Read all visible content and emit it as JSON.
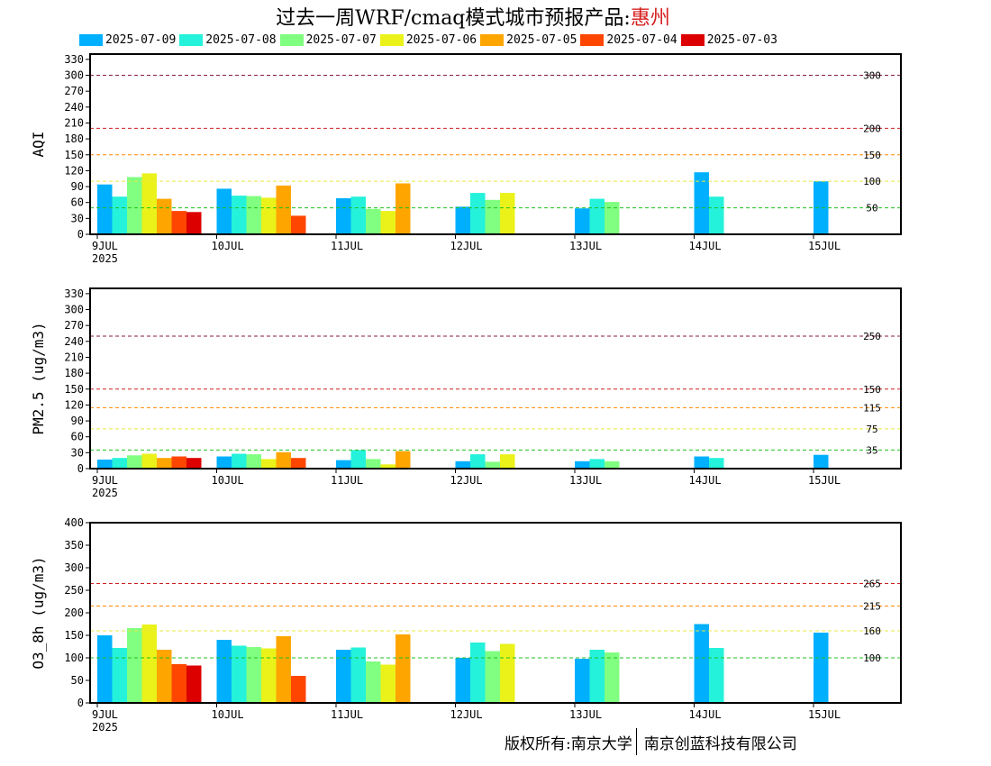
{
  "title": {
    "main": "过去一周WRF/cmaq模式城市预报产品:",
    "city": "惠州"
  },
  "legend": [
    {
      "label": "2025-07-09",
      "color": "#00b0ff"
    },
    {
      "label": "2025-07-08",
      "color": "#24f2da"
    },
    {
      "label": "2025-07-07",
      "color": "#80ff80"
    },
    {
      "label": "2025-07-06",
      "color": "#eaf21a"
    },
    {
      "label": "2025-07-05",
      "color": "#ffa500"
    },
    {
      "label": "2025-07-04",
      "color": "#ff4600"
    },
    {
      "label": "2025-07-03",
      "color": "#dd0000"
    }
  ],
  "x_ticks": [
    "9JUL",
    "10JUL",
    "11JUL",
    "12JUL",
    "13JUL",
    "14JUL",
    "15JUL"
  ],
  "year_label": "2025",
  "chart_data": [
    {
      "type": "bar",
      "ylabel": "AQI",
      "ylim": [
        0,
        340
      ],
      "yticks": [
        0,
        30,
        60,
        90,
        120,
        150,
        180,
        210,
        240,
        270,
        300,
        330
      ],
      "categories": [
        "9JUL",
        "10JUL",
        "11JUL",
        "12JUL",
        "13JUL",
        "14JUL",
        "15JUL"
      ],
      "thresholds": [
        {
          "value": 300,
          "label": "300",
          "color": "#8b1a4a"
        },
        {
          "value": 200,
          "label": "200",
          "color": "#cc2020"
        },
        {
          "value": 150,
          "label": "150",
          "color": "#ff8800"
        },
        {
          "value": 100,
          "label": "100",
          "color": "#e8e840"
        },
        {
          "value": 50,
          "label": "50",
          "color": "#20c020"
        }
      ],
      "series": [
        {
          "name": "2025-07-09",
          "values": [
            94,
            86,
            68,
            52,
            49,
            117,
            100
          ]
        },
        {
          "name": "2025-07-08",
          "values": [
            71,
            73,
            71,
            78,
            67,
            71,
            null
          ]
        },
        {
          "name": "2025-07-07",
          "values": [
            108,
            72,
            48,
            65,
            61,
            null,
            null
          ]
        },
        {
          "name": "2025-07-06",
          "values": [
            115,
            69,
            44,
            78,
            null,
            null,
            null
          ]
        },
        {
          "name": "2025-07-05",
          "values": [
            67,
            92,
            96,
            null,
            null,
            null,
            null
          ]
        },
        {
          "name": "2025-07-04",
          "values": [
            44,
            35,
            null,
            null,
            null,
            null,
            null
          ]
        },
        {
          "name": "2025-07-03",
          "values": [
            42,
            null,
            null,
            null,
            null,
            null,
            null
          ]
        }
      ]
    },
    {
      "type": "bar",
      "ylabel": "PM2.5 (ug/m3)",
      "ylim": [
        0,
        340
      ],
      "yticks": [
        0,
        30,
        60,
        90,
        120,
        150,
        180,
        210,
        240,
        270,
        300,
        330
      ],
      "categories": [
        "9JUL",
        "10JUL",
        "11JUL",
        "12JUL",
        "13JUL",
        "14JUL",
        "15JUL"
      ],
      "thresholds": [
        {
          "value": 250,
          "label": "250",
          "color": "#8b1a4a"
        },
        {
          "value": 150,
          "label": "150",
          "color": "#cc2020"
        },
        {
          "value": 115,
          "label": "115",
          "color": "#ff8800"
        },
        {
          "value": 75,
          "label": "75",
          "color": "#e8e840"
        },
        {
          "value": 35,
          "label": "35",
          "color": "#20c020"
        }
      ],
      "series": [
        {
          "name": "2025-07-09",
          "values": [
            17,
            23,
            16,
            14,
            14,
            23,
            26
          ]
        },
        {
          "name": "2025-07-08",
          "values": [
            20,
            28,
            35,
            27,
            18,
            20,
            null
          ]
        },
        {
          "name": "2025-07-07",
          "values": [
            25,
            27,
            18,
            13,
            14,
            null,
            null
          ]
        },
        {
          "name": "2025-07-06",
          "values": [
            28,
            18,
            8,
            27,
            null,
            null,
            null
          ]
        },
        {
          "name": "2025-07-05",
          "values": [
            20,
            31,
            33,
            null,
            null,
            null,
            null
          ]
        },
        {
          "name": "2025-07-04",
          "values": [
            23,
            20,
            null,
            null,
            null,
            null,
            null
          ]
        },
        {
          "name": "2025-07-03",
          "values": [
            20,
            null,
            null,
            null,
            null,
            null,
            null
          ]
        }
      ]
    },
    {
      "type": "bar",
      "ylabel": "O3_8h (ug/m3)",
      "ylim": [
        0,
        400
      ],
      "yticks": [
        0,
        50,
        100,
        150,
        200,
        250,
        300,
        350,
        400
      ],
      "categories": [
        "9JUL",
        "10JUL",
        "11JUL",
        "12JUL",
        "13JUL",
        "14JUL",
        "15JUL"
      ],
      "thresholds": [
        {
          "value": 265,
          "label": "265",
          "color": "#cc2020"
        },
        {
          "value": 215,
          "label": "215",
          "color": "#ff8800"
        },
        {
          "value": 160,
          "label": "160",
          "color": "#e8e840"
        },
        {
          "value": 100,
          "label": "100",
          "color": "#20c020"
        }
      ],
      "series": [
        {
          "name": "2025-07-09",
          "values": [
            150,
            140,
            118,
            100,
            98,
            175,
            156
          ]
        },
        {
          "name": "2025-07-08",
          "values": [
            122,
            127,
            123,
            134,
            118,
            122,
            null
          ]
        },
        {
          "name": "2025-07-07",
          "values": [
            166,
            124,
            92,
            115,
            112,
            null,
            null
          ]
        },
        {
          "name": "2025-07-06",
          "values": [
            174,
            121,
            85,
            131,
            null,
            null,
            null
          ]
        },
        {
          "name": "2025-07-05",
          "values": [
            118,
            148,
            152,
            null,
            null,
            null,
            null
          ]
        },
        {
          "name": "2025-07-04",
          "values": [
            86,
            60,
            null,
            null,
            null,
            null,
            null
          ]
        },
        {
          "name": "2025-07-03",
          "values": [
            83,
            null,
            null,
            null,
            null,
            null,
            null
          ]
        }
      ]
    }
  ],
  "copyright": {
    "left": "版权所有:南京大学",
    "right": "南京创蓝科技有限公司"
  }
}
